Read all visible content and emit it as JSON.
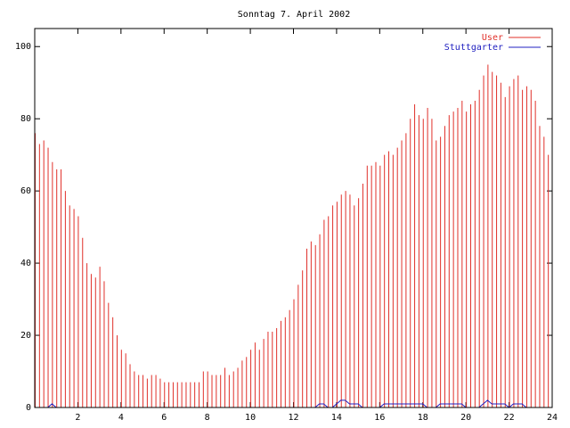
{
  "chart_data": {
    "type": "impulse",
    "title": "Sonntag 7. April 2002",
    "x": [
      0,
      0.2,
      0.4,
      0.6,
      0.8,
      1,
      1.2,
      1.4,
      1.6,
      1.8,
      2,
      2.2,
      2.4,
      2.6,
      2.8,
      3,
      3.2,
      3.4,
      3.6,
      3.8,
      4,
      4.2,
      4.4,
      4.6,
      4.8,
      5,
      5.2,
      5.4,
      5.6,
      5.8,
      6,
      6.2,
      6.4,
      6.6,
      6.8,
      7,
      7.2,
      7.4,
      7.6,
      7.8,
      8,
      8.2,
      8.4,
      8.6,
      8.8,
      9,
      9.2,
      9.4,
      9.6,
      9.8,
      10,
      10.2,
      10.4,
      10.6,
      10.8,
      11,
      11.2,
      11.4,
      11.6,
      11.8,
      12,
      12.2,
      12.4,
      12.6,
      12.8,
      13,
      13.2,
      13.4,
      13.6,
      13.8,
      14,
      14.2,
      14.4,
      14.6,
      14.8,
      15,
      15.2,
      15.4,
      15.6,
      15.8,
      16,
      16.2,
      16.4,
      16.6,
      16.8,
      17,
      17.2,
      17.4,
      17.6,
      17.8,
      18,
      18.2,
      18.4,
      18.6,
      18.8,
      19,
      19.2,
      19.4,
      19.6,
      19.8,
      20,
      20.2,
      20.4,
      20.6,
      20.8,
      21,
      21.2,
      21.4,
      21.6,
      21.8,
      22,
      22.2,
      22.4,
      22.6,
      22.8,
      23,
      23.2,
      23.4,
      23.6,
      23.8
    ],
    "series": [
      {
        "name": "User",
        "color": "#e0302a",
        "style": "impulses",
        "values": [
          76,
          73,
          74,
          72,
          68,
          66,
          66,
          60,
          56,
          55,
          53,
          47,
          40,
          37,
          36,
          39,
          35,
          29,
          25,
          20,
          16,
          15,
          12,
          10,
          9,
          9,
          8,
          9,
          9,
          8,
          7,
          7,
          7,
          7,
          7,
          7,
          7,
          7,
          7,
          10,
          10,
          9,
          9,
          9,
          11,
          9,
          10,
          11,
          13,
          14,
          16,
          18,
          16,
          19,
          21,
          21,
          22,
          24,
          25,
          27,
          30,
          34,
          38,
          44,
          46,
          45,
          48,
          52,
          53,
          56,
          57,
          59,
          60,
          59,
          56,
          58,
          62,
          67,
          67,
          68,
          67,
          70,
          71,
          70,
          72,
          74,
          76,
          80,
          84,
          81,
          80,
          83,
          80,
          74,
          75,
          78,
          81,
          82,
          83,
          85,
          82,
          84,
          85,
          88,
          92,
          95,
          93,
          92,
          90,
          86,
          89,
          91,
          92,
          88,
          89,
          88,
          85,
          78,
          75,
          70
        ]
      },
      {
        "name": "Stuttgarter",
        "color": "#2020c0",
        "style": "lines",
        "values": [
          0,
          0,
          0,
          0,
          1,
          0,
          0,
          0,
          0,
          0,
          0,
          0,
          0,
          0,
          0,
          0,
          0,
          0,
          0,
          0,
          0,
          0,
          0,
          0,
          0,
          0,
          0,
          0,
          0,
          0,
          0,
          0,
          0,
          0,
          0,
          0,
          0,
          0,
          0,
          0,
          0,
          0,
          0,
          0,
          0,
          0,
          0,
          0,
          0,
          0,
          0,
          0,
          0,
          0,
          0,
          0,
          0,
          0,
          0,
          0,
          0,
          0,
          0,
          0,
          0,
          0,
          1,
          1,
          0,
          0,
          1,
          2,
          2,
          1,
          1,
          1,
          0,
          0,
          0,
          0,
          0,
          1,
          1,
          1,
          1,
          1,
          1,
          1,
          1,
          1,
          1,
          0,
          0,
          0,
          1,
          1,
          1,
          1,
          1,
          1,
          0,
          0,
          0,
          0,
          1,
          2,
          1,
          1,
          1,
          1,
          0,
          1,
          1,
          1,
          0,
          0,
          0,
          0,
          0,
          0
        ]
      }
    ],
    "xlim": [
      0,
      24
    ],
    "xticks": [
      2,
      4,
      6,
      8,
      10,
      12,
      14,
      16,
      18,
      20,
      22,
      24
    ],
    "ylim": [
      0,
      105
    ],
    "yticks": [
      0,
      20,
      40,
      60,
      80,
      100
    ],
    "legend": "upper right"
  }
}
